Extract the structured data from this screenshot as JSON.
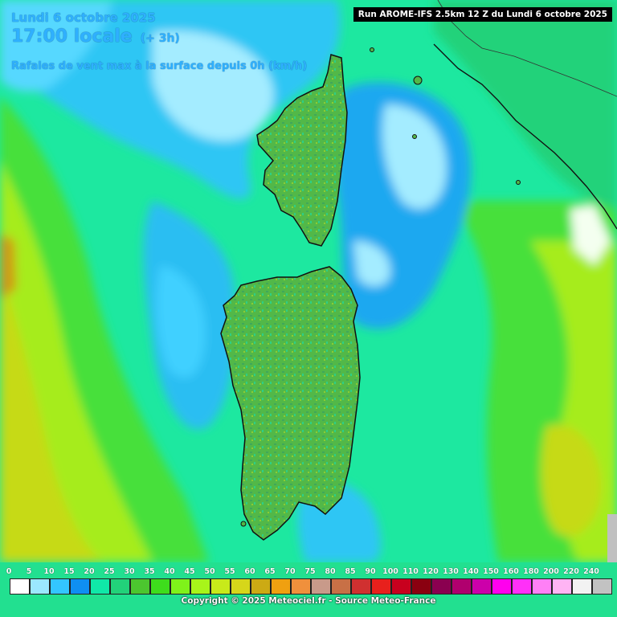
{
  "header": {
    "date": "Lundi 6 octobre 2025",
    "time": "17:00 locale",
    "offset": "(+ 3h)",
    "parameter": "Rafales de vent max à la surface depuis 0h (km/h)"
  },
  "run_info": "Run AROME-IFS 2.5km 12 Z du Lundi 6 octobre 2025",
  "legend": {
    "ticks": [
      "0",
      "5",
      "10",
      "15",
      "20",
      "25",
      "30",
      "35",
      "40",
      "45",
      "50",
      "55",
      "60",
      "65",
      "70",
      "75",
      "80",
      "85",
      "90",
      "100",
      "110",
      "120",
      "130",
      "140",
      "150",
      "160",
      "180",
      "200",
      "220",
      "240"
    ],
    "colors": [
      "#ffffff",
      "#9be8ff",
      "#33c6ff",
      "#0f8ff2",
      "#10e8a8",
      "#22d27a",
      "#4cc62f",
      "#3edd1c",
      "#7ff21a",
      "#a8f51a",
      "#c8ea1a",
      "#d6d61a",
      "#ccaa14",
      "#f0a010",
      "#f0903c",
      "#c89a8a",
      "#c87046",
      "#d03030",
      "#e8201c",
      "#c8001e",
      "#8a0010",
      "#8a0050",
      "#b0006e",
      "#cc00aa",
      "#ff00ee",
      "#ff30f8",
      "#ff80f6",
      "#ffb4f4",
      "#f2f2f2",
      "#c2c2c2"
    ]
  },
  "copyright": "Copyright © 2025 Meteociel.fr - Source Meteo-France"
}
